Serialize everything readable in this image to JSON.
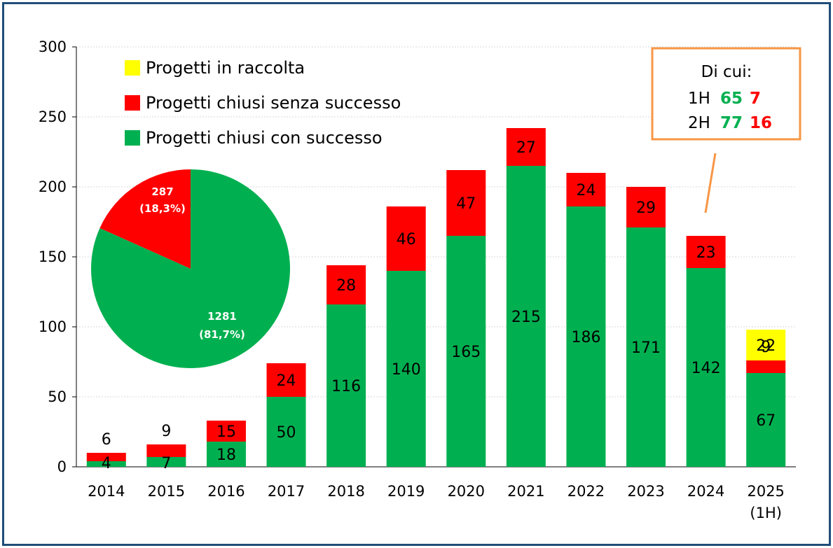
{
  "colors": {
    "success": "#00b050",
    "failure": "#ff0000",
    "collecting": "#ffff00",
    "callout_border": "#f79646",
    "frame": "#1f4e79",
    "grid": "#d9d9d9"
  },
  "chart_data": {
    "type": "bar",
    "stacked": true,
    "categories": [
      "2014",
      "2015",
      "2016",
      "2017",
      "2018",
      "2019",
      "2020",
      "2021",
      "2022",
      "2023",
      "2024",
      "2025"
    ],
    "category_sublabels": [
      "",
      "",
      "",
      "",
      "",
      "",
      "",
      "",
      "",
      "",
      "",
      "(1H)"
    ],
    "ylim": [
      0,
      300
    ],
    "yticks": [
      "0",
      "50",
      "100",
      "150",
      "200",
      "250",
      "300"
    ],
    "grid": true,
    "legend_position": "top-left",
    "series": [
      {
        "name": "Progetti chiusi con successo",
        "color": "#00b050",
        "values": [
          4,
          7,
          18,
          50,
          116,
          140,
          165,
          215,
          186,
          171,
          142,
          67
        ]
      },
      {
        "name": "Progetti chiusi senza successo",
        "color": "#ff0000",
        "values": [
          6,
          9,
          15,
          24,
          28,
          46,
          47,
          27,
          24,
          29,
          23,
          9
        ]
      },
      {
        "name": "Progetti in raccolta",
        "color": "#ffff00",
        "values": [
          null,
          null,
          null,
          null,
          null,
          null,
          null,
          null,
          null,
          null,
          null,
          22
        ]
      }
    ],
    "legend_order": [
      "Progetti in raccolta",
      "Progetti chiusi senza successo",
      "Progetti chiusi con successo"
    ],
    "pie": {
      "type": "pie",
      "slices": [
        {
          "label": "287",
          "percent_label": "(18,3%)",
          "value": 287,
          "color": "#ff0000"
        },
        {
          "label": "1281",
          "percent_label": "(81,7%)",
          "value": 1281,
          "color": "#00b050"
        }
      ]
    },
    "callout": {
      "title": "Di cui:",
      "rows": [
        {
          "label": "1H",
          "success": "65",
          "failure": "7"
        },
        {
          "label": "2H",
          "success": "77",
          "failure": "16"
        }
      ],
      "points_to_category": "2024"
    }
  }
}
